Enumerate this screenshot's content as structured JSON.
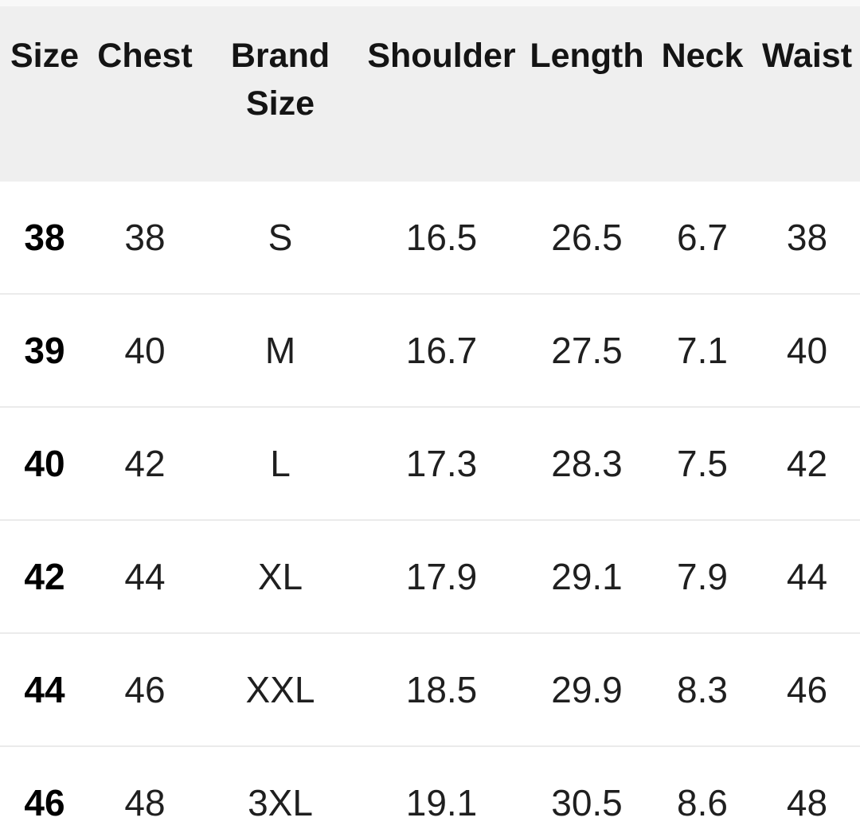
{
  "colors": {
    "header_bg": "#efefef",
    "row_separator": "#ebebeb",
    "header_text": "#141414",
    "cell_text": "#1f1f1f"
  },
  "table": {
    "columns": [
      {
        "label": "Size"
      },
      {
        "label": "Chest"
      },
      {
        "label": "Brand Size"
      },
      {
        "label": "Shoulder"
      },
      {
        "label": "Length"
      },
      {
        "label": "Neck"
      },
      {
        "label": "Waist"
      }
    ],
    "rows": [
      {
        "cells": [
          "38",
          "38",
          "S",
          "16.5",
          "26.5",
          "6.7",
          "38"
        ]
      },
      {
        "cells": [
          "39",
          "40",
          "M",
          "16.7",
          "27.5",
          "7.1",
          "40"
        ]
      },
      {
        "cells": [
          "40",
          "42",
          "L",
          "17.3",
          "28.3",
          "7.5",
          "42"
        ]
      },
      {
        "cells": [
          "42",
          "44",
          "XL",
          "17.9",
          "29.1",
          "7.9",
          "44"
        ]
      },
      {
        "cells": [
          "44",
          "46",
          "XXL",
          "18.5",
          "29.9",
          "8.3",
          "46"
        ]
      },
      {
        "cells": [
          "46",
          "48",
          "3XL",
          "19.1",
          "30.5",
          "8.6",
          "48"
        ]
      }
    ]
  }
}
